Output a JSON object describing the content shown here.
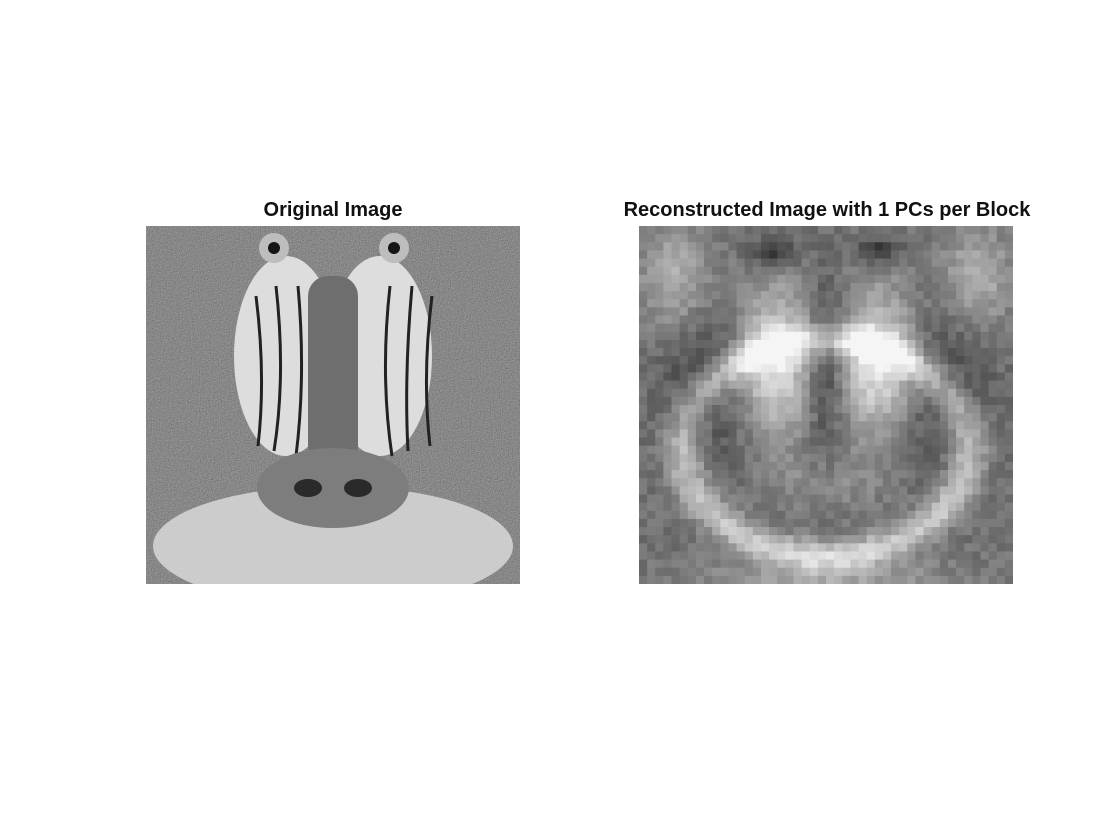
{
  "figure": {
    "panels": [
      {
        "title": "Original Image",
        "depicts": "baboon-face-photo",
        "style": "grayscale-fine-detail"
      },
      {
        "title": "Reconstructed Image with 1 PCs per Block",
        "depicts": "baboon-face-photo",
        "style": "grayscale-blocky"
      }
    ]
  }
}
